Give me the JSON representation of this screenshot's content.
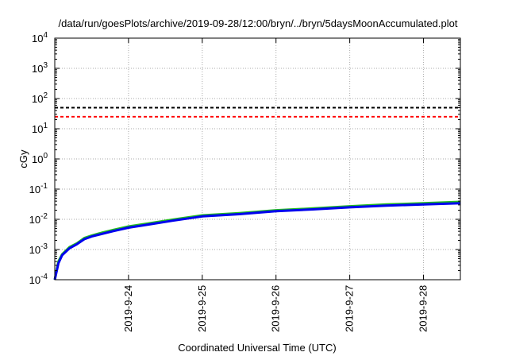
{
  "chart_data": {
    "type": "line",
    "title": "/data/run/goesPlots/archive/2019-09-28/12:00/bryn/../bryn/5daysMoonAccumulated.plot",
    "xlabel": "Coordinated Universal Time (UTC)",
    "ylabel": "cGy",
    "yscale": "log",
    "ylim": [
      0.0001,
      10000
    ],
    "xlim": [
      "2019-09-23T00:00",
      "2019-09-28T12:00"
    ],
    "grid": true,
    "y_ticks": [
      {
        "value": 0.0001,
        "base": "10",
        "exp": "-4"
      },
      {
        "value": 0.001,
        "base": "10",
        "exp": "-3"
      },
      {
        "value": 0.01,
        "base": "10",
        "exp": "-2"
      },
      {
        "value": 0.1,
        "base": "10",
        "exp": "-1"
      },
      {
        "value": 1,
        "base": "10",
        "exp": "0"
      },
      {
        "value": 10,
        "base": "10",
        "exp": "1"
      },
      {
        "value": 100,
        "base": "10",
        "exp": "2"
      },
      {
        "value": 1000,
        "base": "10",
        "exp": "3"
      },
      {
        "value": 10000,
        "base": "10",
        "exp": "4"
      }
    ],
    "x_ticks": [
      {
        "value": "2019-09-24T00:00",
        "label": "2019-9-24"
      },
      {
        "value": "2019-09-25T00:00",
        "label": "2019-9-25"
      },
      {
        "value": "2019-09-26T00:00",
        "label": "2019-9-26"
      },
      {
        "value": "2019-09-27T00:00",
        "label": "2019-9-27"
      },
      {
        "value": "2019-09-28T00:00",
        "label": "2019-9-28"
      }
    ],
    "thresholds": [
      {
        "value": 50,
        "color": "#000000"
      },
      {
        "value": 25,
        "color": "#ff0000"
      }
    ],
    "series": [
      {
        "color": "#22bb22",
        "x": [
          "2019-09-23T00:00",
          "2019-09-23T01:12",
          "2019-09-23T02:24",
          "2019-09-23T04:48",
          "2019-09-23T07:12",
          "2019-09-23T09:36",
          "2019-09-23T12:00",
          "2019-09-23T14:24",
          "2019-09-23T19:12",
          "2019-09-24T00:00",
          "2019-09-24T07:12",
          "2019-09-24T14:24",
          "2019-09-25T00:00",
          "2019-09-25T12:00",
          "2019-09-26T00:00",
          "2019-09-26T12:00",
          "2019-09-27T00:00",
          "2019-09-27T12:00",
          "2019-09-28T00:00",
          "2019-09-28T12:00"
        ],
        "y": [
          0.0001,
          0.0004,
          0.0007,
          0.0012,
          0.0016,
          0.0024,
          0.0029,
          0.0034,
          0.0045,
          0.0058,
          0.0075,
          0.0098,
          0.0135,
          0.016,
          0.02,
          0.023,
          0.027,
          0.031,
          0.034,
          0.038
        ]
      },
      {
        "color": "#0000ee",
        "x": [
          "2019-09-23T00:00",
          "2019-09-23T01:12",
          "2019-09-23T02:24",
          "2019-09-23T04:48",
          "2019-09-23T07:12",
          "2019-09-23T09:36",
          "2019-09-23T12:00",
          "2019-09-23T14:24",
          "2019-09-23T19:12",
          "2019-09-24T00:00",
          "2019-09-24T07:12",
          "2019-09-24T14:24",
          "2019-09-25T00:00",
          "2019-09-25T12:00",
          "2019-09-26T00:00",
          "2019-09-26T12:00",
          "2019-09-27T00:00",
          "2019-09-27T12:00",
          "2019-09-28T00:00",
          "2019-09-28T12:00"
        ],
        "y": [
          0.0001,
          0.00035,
          0.00065,
          0.0011,
          0.0015,
          0.0022,
          0.0027,
          0.0031,
          0.0041,
          0.0053,
          0.0069,
          0.009,
          0.0125,
          0.0148,
          0.0185,
          0.0213,
          0.025,
          0.0285,
          0.031,
          0.034
        ]
      }
    ]
  }
}
